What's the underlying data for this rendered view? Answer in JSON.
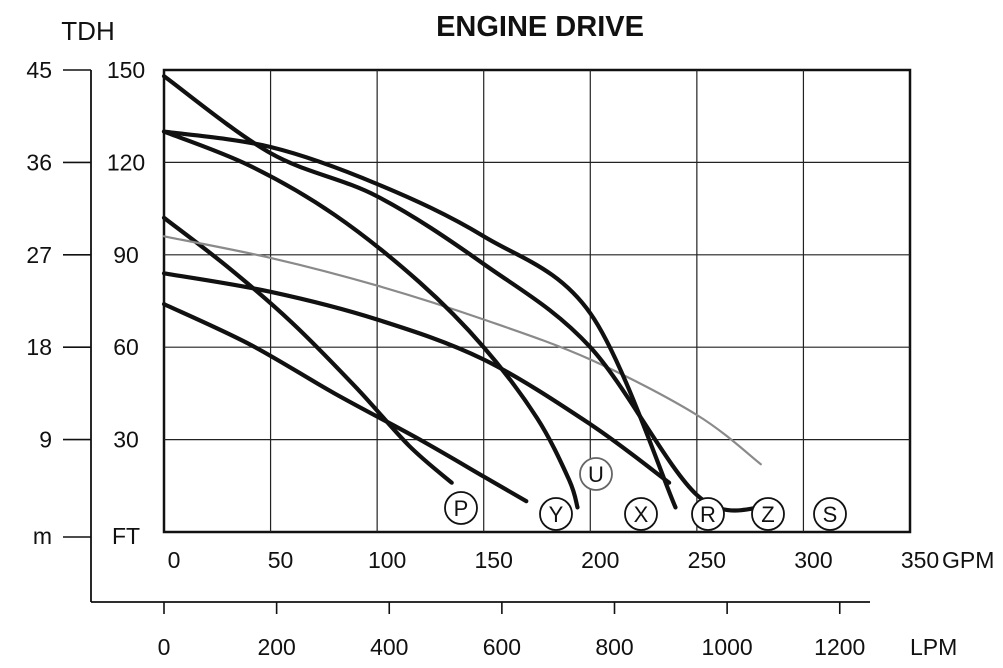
{
  "chart_data": {
    "type": "line",
    "title": "ENGINE DRIVE",
    "left_axis_title": "TDH",
    "m_axis_unit": "m",
    "ft_axis_unit": "FT",
    "gpm_unit": "GPM",
    "lpm_unit": "LPM",
    "m_ticks": [
      "45",
      "36",
      "27",
      "18",
      "9"
    ],
    "ft_ticks": [
      "150",
      "120",
      "90",
      "60",
      "30"
    ],
    "gpm_ticks": [
      "0",
      "50",
      "100",
      "150",
      "200",
      "250",
      "300",
      "350"
    ],
    "lpm_ticks": [
      "0",
      "200",
      "400",
      "600",
      "800",
      "1000",
      "1200"
    ],
    "xlim_gpm": [
      0,
      350
    ],
    "ylim_ft": [
      0,
      150
    ],
    "grid": true,
    "series": [
      {
        "name": "P",
        "weight": "bold",
        "x": [
          0,
          30,
          60,
          90,
          115,
          135
        ],
        "y": [
          102,
          86,
          68,
          47,
          28,
          16
        ]
      },
      {
        "name": "Y",
        "weight": "bold",
        "x": [
          0,
          40,
          80,
          120,
          150,
          170
        ],
        "y": [
          74,
          61,
          45,
          30,
          18,
          10
        ]
      },
      {
        "name": "U",
        "weight": "light",
        "x": [
          0,
          50,
          100,
          150,
          200,
          250,
          280
        ],
        "y": [
          96,
          89,
          80,
          69,
          56,
          38,
          22
        ]
      },
      {
        "name": "X",
        "weight": "bold",
        "x": [
          0,
          40,
          80,
          120,
          150,
          175,
          190,
          194
        ],
        "y": [
          130,
          119,
          103,
          81,
          60,
          37,
          17,
          8
        ]
      },
      {
        "name": "R",
        "weight": "bold",
        "x": [
          0,
          50,
          100,
          150,
          200,
          237
        ],
        "y": [
          84,
          78,
          69,
          56,
          35,
          16
        ]
      },
      {
        "name": "Z",
        "weight": "bold",
        "x": [
          0,
          50,
          100,
          150,
          200,
          240
        ],
        "y": [
          130,
          125,
          113,
          96,
          71,
          8
        ]
      },
      {
        "name": "S",
        "weight": "bold",
        "x": [
          0,
          50,
          100,
          150,
          200,
          250,
          282
        ],
        "y": [
          148,
          123,
          109,
          87,
          60,
          12,
          8
        ]
      }
    ]
  }
}
